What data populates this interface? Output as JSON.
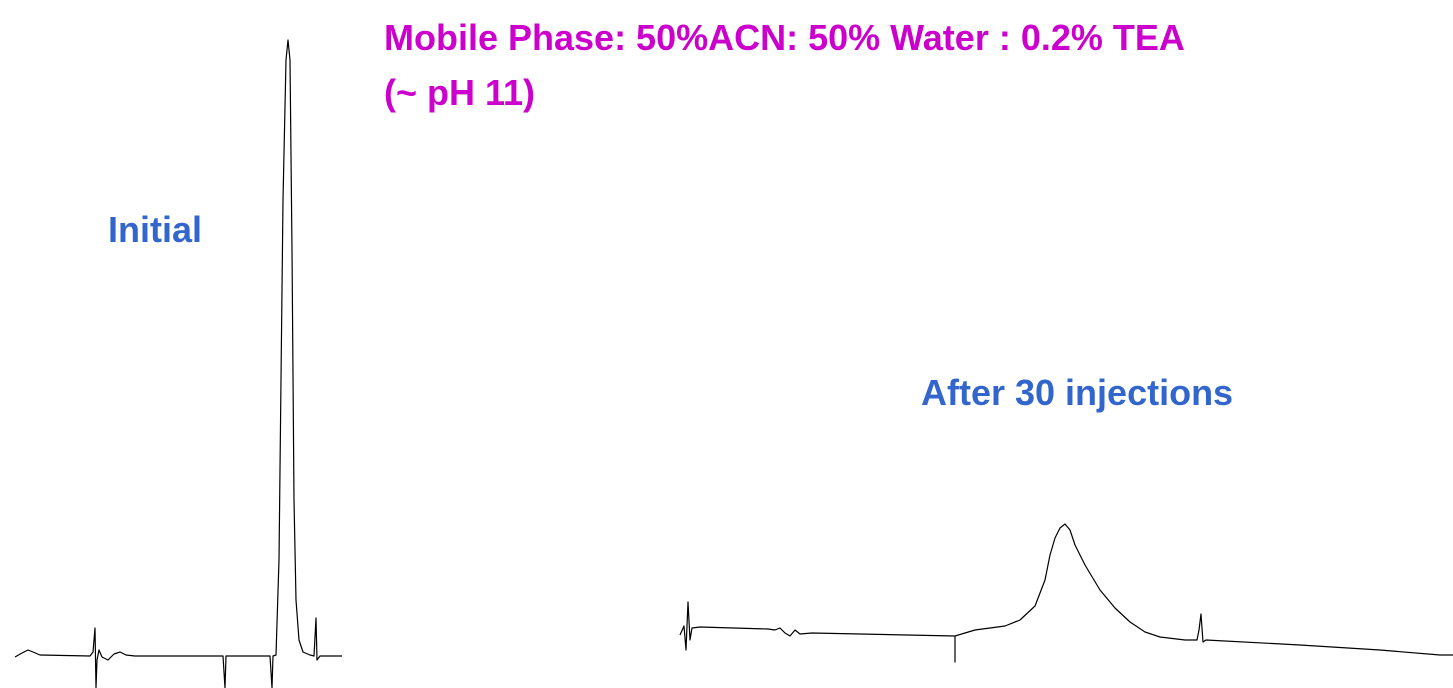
{
  "title": {
    "lines": [
      "Mobile Phase: 50%ACN: 50% Water : 0.2% TEA",
      "(~ pH 11)"
    ]
  },
  "labels": {
    "initial": "Initial",
    "after": "After 30 injections"
  }
}
